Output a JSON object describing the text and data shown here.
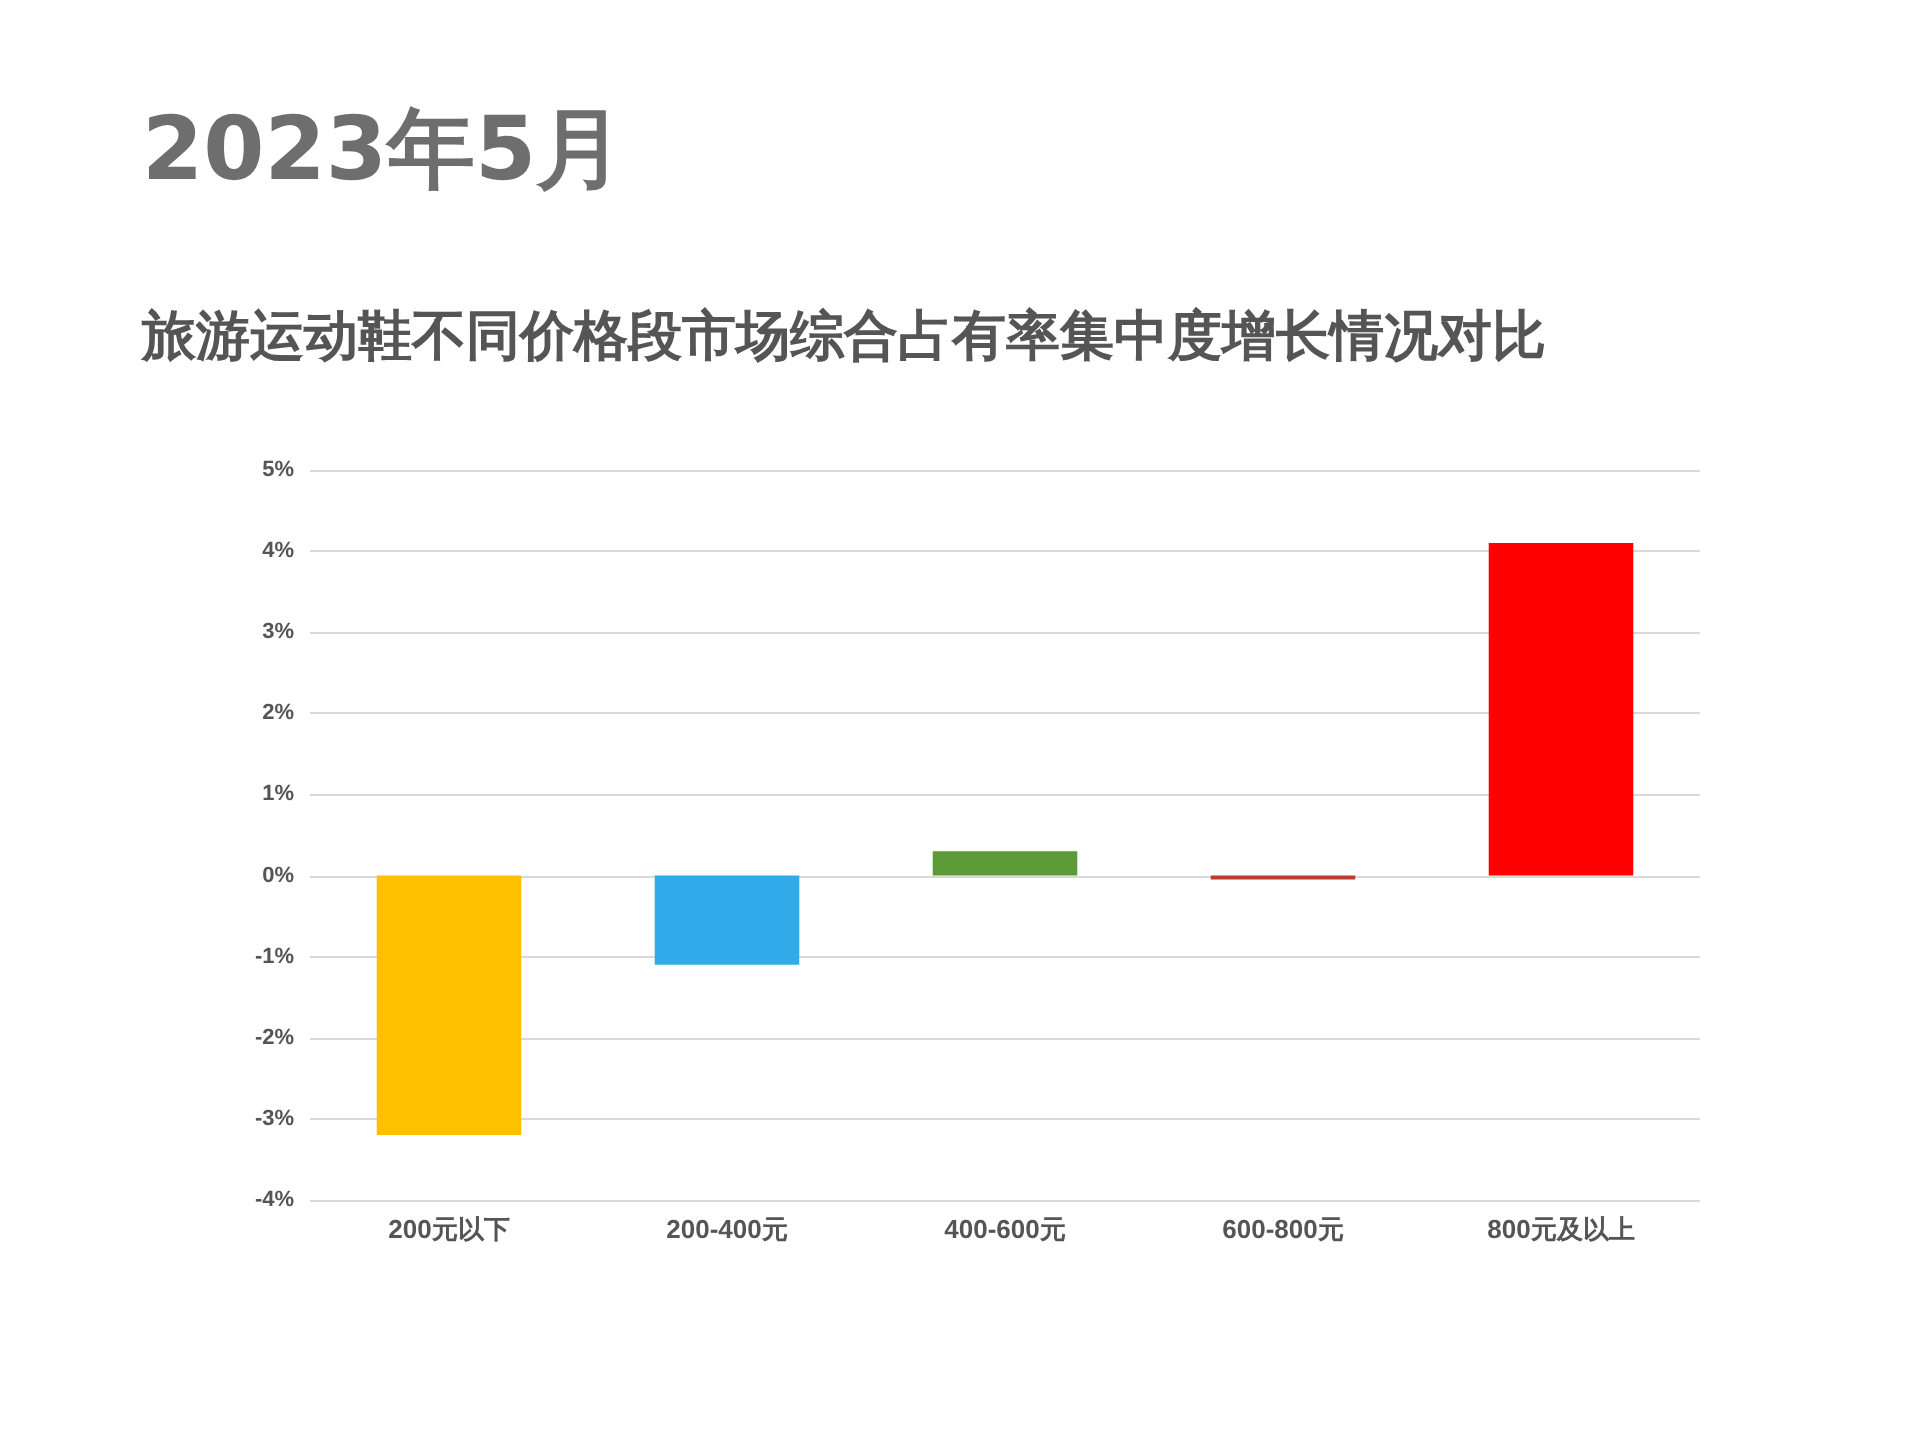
{
  "chart_data": {
    "type": "bar",
    "title": "2023年5月",
    "subtitle": "旅游运动鞋不同价格段市场综合占有率集中度增长情况对比",
    "categories": [
      "200元以下",
      "200-400元",
      "400-600元",
      "600-800元",
      "800元及以上"
    ],
    "values": [
      -3.2,
      -1.1,
      0.3,
      -0.05,
      4.1
    ],
    "colors": [
      "#ffc000",
      "#31aaea",
      "#5b9a35",
      "#c0392b",
      "#ff0000"
    ],
    "ylim": [
      -4,
      5
    ],
    "yticks": [
      {
        "value": -4,
        "label": "-4%"
      },
      {
        "value": -3,
        "label": "-3%"
      },
      {
        "value": -2,
        "label": "-2%"
      },
      {
        "value": -1,
        "label": "-1%"
      },
      {
        "value": 0,
        "label": "0%"
      },
      {
        "value": 1,
        "label": "1%"
      },
      {
        "value": 2,
        "label": "2%"
      },
      {
        "value": 3,
        "label": "3%"
      },
      {
        "value": 4,
        "label": "4%"
      },
      {
        "value": 5,
        "label": "5%"
      }
    ],
    "grid": true
  }
}
